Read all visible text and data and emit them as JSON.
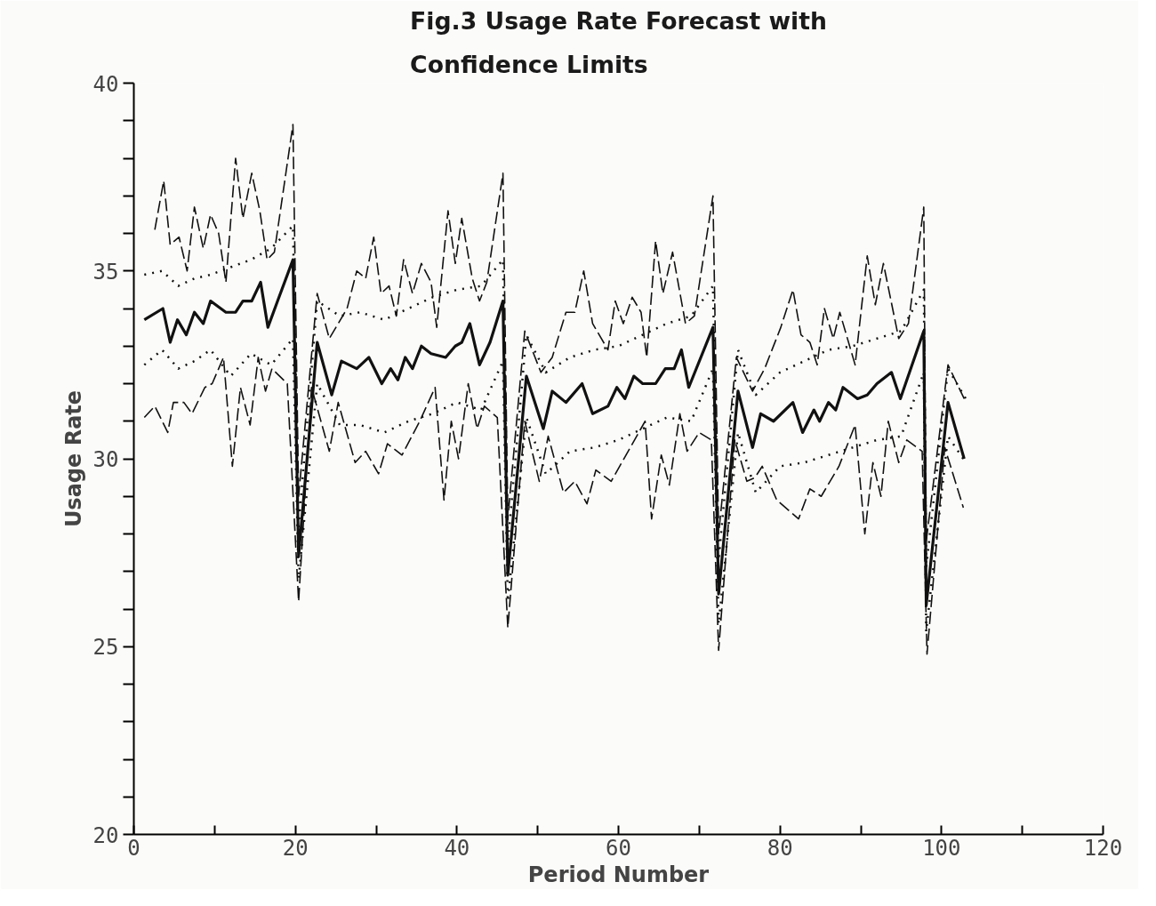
{
  "chart_data": {
    "type": "line",
    "title": "Fig.3 Usage Rate Forecast with\nConfidence Limits",
    "xlabel": "Period Number",
    "ylabel": "Usage Rate",
    "xlim": [
      0,
      120
    ],
    "ylim": [
      20,
      40
    ],
    "xticks": [
      0,
      {
        "value": 10,
        "label": null
      },
      20,
      {
        "value": 30,
        "label": null
      },
      40,
      {
        "value": 50,
        "label": null
      },
      60,
      {
        "value": 70,
        "label": null
      },
      80,
      {
        "value": 90,
        "label": null
      },
      100,
      {
        "value": 110,
        "label": null
      },
      120
    ],
    "yticks": [
      20,
      {
        "value": 21,
        "label": null
      },
      {
        "value": 22,
        "label": null
      },
      {
        "value": 23,
        "label": null
      },
      {
        "value": 24,
        "label": null
      },
      25,
      {
        "value": 26,
        "label": null
      },
      {
        "value": 27,
        "label": null
      },
      {
        "value": 28,
        "label": null
      },
      {
        "value": 29,
        "label": null
      },
      30,
      {
        "value": 31,
        "label": null
      },
      {
        "value": 32,
        "label": null
      },
      {
        "value": 33,
        "label": null
      },
      {
        "value": 34,
        "label": null
      },
      35,
      {
        "value": 36,
        "label": null
      },
      {
        "value": 37,
        "label": null
      },
      {
        "value": 38,
        "label": null
      },
      {
        "value": 39,
        "label": null
      },
      40
    ],
    "grid": false,
    "series": [
      {
        "color": "#111111",
        "line_style": "solid",
        "x": [
          1.3,
          3.6,
          4.5,
          5.4,
          6.5,
          7.5,
          8.6,
          9.5,
          11.4,
          12.6,
          13.5,
          14.6,
          15.7,
          16.6,
          17.8,
          19.7,
          20.4,
          22.7,
          24.5,
          25.7,
          27.6,
          29.1,
          30.7,
          31.8,
          32.7,
          33.6,
          34.5,
          35.6,
          36.8,
          38.6,
          39.8,
          40.6,
          41.6,
          42.8,
          44.1,
          45.7,
          46.3,
          48.6,
          50.7,
          51.8,
          53.5,
          55.5,
          56.8,
          58.7,
          59.8,
          60.8,
          61.9,
          63.0,
          64.6,
          65.8,
          66.9,
          67.8,
          68.7,
          71.7,
          72.4,
          74.8,
          76.6,
          77.6,
          79.2,
          81.6,
          82.8,
          84.2,
          84.9,
          86.0,
          86.9,
          87.8,
          89.6,
          90.8,
          92.0,
          93.8,
          94.9,
          97.8,
          98.1,
          100.8,
          102.8
        ],
        "values": [
          33.7,
          34.0,
          33.1,
          33.7,
          33.3,
          33.9,
          33.6,
          34.2,
          33.9,
          33.9,
          34.2,
          34.2,
          34.7,
          33.5,
          34.2,
          35.3,
          27.4,
          33.1,
          31.7,
          32.6,
          32.4,
          32.7,
          32.0,
          32.4,
          32.1,
          32.7,
          32.4,
          33.0,
          32.8,
          32.7,
          33.0,
          33.1,
          33.6,
          32.5,
          33.1,
          34.2,
          26.9,
          32.2,
          30.8,
          31.8,
          31.5,
          32.0,
          31.2,
          31.4,
          31.9,
          31.6,
          32.2,
          32.0,
          32.0,
          32.4,
          32.4,
          32.9,
          31.9,
          33.5,
          26.4,
          31.8,
          30.3,
          31.2,
          31.0,
          31.5,
          30.7,
          31.3,
          31.0,
          31.5,
          31.3,
          31.9,
          31.6,
          31.7,
          32.0,
          32.3,
          31.6,
          33.4,
          26.1,
          31.5,
          30.0
        ]
      },
      {
        "color": "#111111",
        "line_style": "dotted",
        "x": [
          1.3,
          3.5,
          5.5,
          7.5,
          9.5,
          12,
          14.5,
          17,
          19.7,
          20.4,
          22.7,
          25.5,
          28,
          31,
          34,
          37,
          40,
          43,
          45.7,
          46.3,
          48.6,
          51,
          54,
          57,
          60,
          63,
          66,
          69,
          71.7,
          72.4,
          74.8,
          77,
          80,
          83,
          86,
          89,
          92,
          95,
          97.8,
          98.1,
          100.8,
          103
        ],
        "values": [
          34.9,
          35.0,
          34.6,
          34.8,
          34.9,
          35.1,
          35.3,
          35.6,
          36.2,
          28.2,
          34.2,
          33.8,
          33.9,
          33.7,
          34.0,
          34.3,
          34.5,
          34.6,
          35.3,
          27.7,
          33.3,
          32.3,
          32.7,
          32.9,
          33.0,
          33.3,
          33.6,
          33.8,
          34.6,
          27.3,
          32.9,
          31.7,
          32.3,
          32.6,
          32.9,
          33.0,
          33.2,
          33.4,
          34.5,
          27.1,
          32.4,
          31.6
        ]
      },
      {
        "color": "#111111",
        "line_style": "dotted",
        "x": [
          1.3,
          3.5,
          5.5,
          7.5,
          9.5,
          12,
          14.5,
          17,
          19.7,
          20.4,
          22.7,
          25.5,
          28,
          31,
          34,
          37,
          40,
          43,
          45.7,
          46.3,
          48.6,
          51,
          54,
          57,
          60,
          63,
          66,
          69,
          71.7,
          72.4,
          74.8,
          77,
          80,
          83,
          86,
          89,
          92,
          95,
          97.8,
          98.1,
          100.8,
          103
        ],
        "values": [
          32.5,
          32.9,
          32.4,
          32.6,
          32.9,
          32.2,
          32.8,
          32.5,
          33.2,
          26.8,
          32.0,
          30.9,
          30.9,
          30.7,
          31.0,
          31.2,
          31.5,
          31.3,
          32.6,
          26.2,
          31.1,
          29.6,
          30.2,
          30.3,
          30.5,
          30.8,
          31.1,
          31.0,
          32.4,
          25.6,
          30.7,
          29.1,
          29.8,
          29.9,
          30.1,
          30.3,
          30.5,
          30.6,
          32.3,
          25.4,
          30.6,
          29.9
        ]
      },
      {
        "color": "#111111",
        "line_style": "dashed",
        "x": [
          2.6,
          3.7,
          4.5,
          5.6,
          6.6,
          7.5,
          8.6,
          9.5,
          10.5,
          11.4,
          12.6,
          13.5,
          14.6,
          15.6,
          16.5,
          17.4,
          19.7,
          20.4,
          22.7,
          24.2,
          26.4,
          27.6,
          28.7,
          29.7,
          30.6,
          31.6,
          32.5,
          33.4,
          34.5,
          35.6,
          36.8,
          37.5,
          38.9,
          39.8,
          40.6,
          41.9,
          42.8,
          43.7,
          45.7,
          46.3,
          48.4,
          50.4,
          51.8,
          53.5,
          54.6,
          55.7,
          56.8,
          58.7,
          59.6,
          60.6,
          61.7,
          62.8,
          63.5,
          64.6,
          65.5,
          66.7,
          68.3,
          69.4,
          71.7,
          72.4,
          74.6,
          76.6,
          78.1,
          80.1,
          81.6,
          82.6,
          83.7,
          84.6,
          85.5,
          86.6,
          87.4,
          89.3,
          90.8,
          91.8,
          92.8,
          94.7,
          95.9,
          97.8,
          98.1,
          100.8,
          102.8
        ],
        "values": [
          36.1,
          37.4,
          35.7,
          35.9,
          35.0,
          36.7,
          35.6,
          36.5,
          36.0,
          34.7,
          38.0,
          36.4,
          37.6,
          36.6,
          35.3,
          35.5,
          38.9,
          29.0,
          34.4,
          33.2,
          34.0,
          35.0,
          34.8,
          35.9,
          34.4,
          34.6,
          33.8,
          35.3,
          34.4,
          35.2,
          34.7,
          33.5,
          36.6,
          35.2,
          36.4,
          34.8,
          34.2,
          34.7,
          37.6,
          28.4,
          33.4,
          32.3,
          32.7,
          33.9,
          33.9,
          35.0,
          33.6,
          32.9,
          34.2,
          33.6,
          34.3,
          33.9,
          32.7,
          35.8,
          34.4,
          35.5,
          33.6,
          33.8,
          37.0,
          28.0,
          32.7,
          31.8,
          32.4,
          33.5,
          34.5,
          33.3,
          33.1,
          32.5,
          34.0,
          33.2,
          33.9,
          32.5,
          35.4,
          34.1,
          35.2,
          33.2,
          33.6,
          36.7,
          27.8,
          32.5,
          31.6
        ]
      },
      {
        "color": "#111111",
        "line_style": "dashed",
        "x": [
          1.3,
          2.6,
          4.2,
          4.9,
          6.2,
          7.2,
          8.8,
          9.7,
          11.1,
          12.2,
          13.2,
          14.4,
          15.4,
          16.3,
          17.1,
          19.0,
          20.4,
          22.0,
          24.2,
          25.3,
          27.4,
          28.7,
          30.3,
          31.4,
          33.2,
          35.4,
          37.3,
          38.4,
          39.3,
          40.2,
          41.4,
          42.5,
          43.4,
          45.0,
          46.3,
          48.4,
          50.2,
          51.3,
          53.2,
          54.6,
          56.1,
          57.2,
          59.1,
          61.2,
          63.3,
          64.1,
          65.3,
          66.3,
          67.6,
          68.5,
          70.0,
          71.5,
          72.4,
          74.4,
          75.9,
          76.9,
          77.8,
          79.6,
          82.3,
          83.7,
          85.1,
          87.3,
          89.3,
          90.5,
          91.5,
          92.5,
          93.4,
          94.7,
          95.7,
          97.6,
          98.2,
          100.4,
          102.7
        ],
        "values": [
          31.1,
          31.4,
          30.7,
          31.5,
          31.5,
          31.2,
          31.9,
          32.0,
          32.7,
          29.8,
          31.9,
          30.9,
          32.7,
          31.8,
          32.4,
          32.0,
          26.2,
          31.9,
          30.2,
          31.5,
          29.9,
          30.2,
          29.6,
          30.4,
          30.1,
          31.0,
          31.9,
          28.9,
          31.0,
          30.0,
          32.0,
          30.8,
          31.4,
          31.1,
          25.5,
          31.0,
          29.4,
          30.6,
          29.1,
          29.4,
          28.8,
          29.7,
          29.4,
          30.2,
          31.0,
          28.4,
          30.1,
          29.3,
          31.2,
          30.2,
          30.7,
          30.5,
          24.9,
          30.5,
          29.4,
          29.5,
          29.8,
          28.9,
          28.4,
          29.2,
          29.0,
          29.8,
          30.9,
          28.0,
          29.9,
          29.0,
          31.0,
          29.9,
          30.5,
          30.2,
          24.8,
          30.3,
          28.7
        ]
      }
    ]
  }
}
